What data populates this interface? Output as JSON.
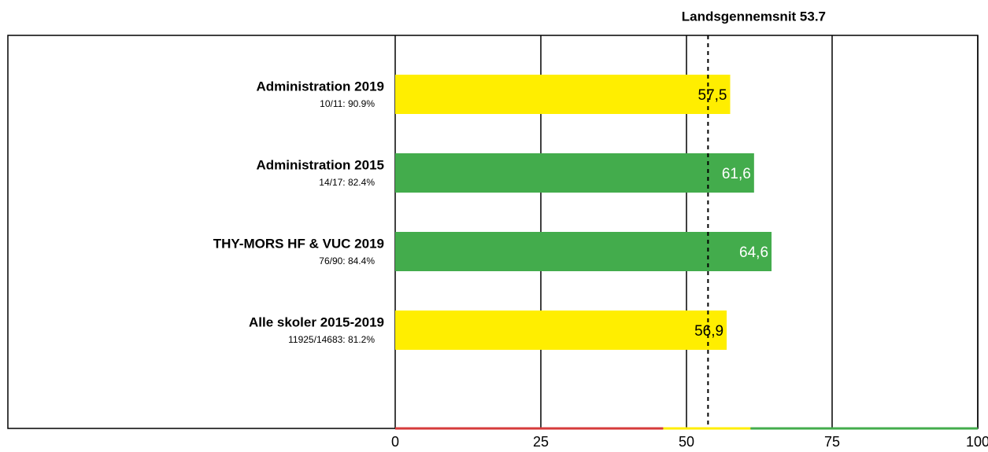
{
  "chart_data": {
    "type": "hbar",
    "categories": [
      "Administration 2019",
      "Administration 2015",
      "THY-MORS HF & VUC 2019",
      "Alle skoler 2015-2019"
    ],
    "sublabels": [
      "10/11: 90.9%",
      "14/17: 82.4%",
      "76/90: 84.4%",
      "11925/14683: 81.2%"
    ],
    "values": [
      57.5,
      61.6,
      64.6,
      56.9
    ],
    "value_labels": [
      "57,5",
      "61,6",
      "64,6",
      "56,9"
    ],
    "colors": [
      "#ffee00",
      "#43ac4c",
      "#43ac4c",
      "#ffee00"
    ],
    "value_label_colors": [
      "#000000",
      "#ffffff",
      "#ffffff",
      "#000000"
    ],
    "xlim": [
      0,
      100
    ],
    "xticks": [
      0,
      25,
      50,
      75,
      100
    ],
    "grid": true,
    "reference": {
      "value": 53.7,
      "label": "Landsgennemsnit 53.7"
    },
    "bands": [
      {
        "range": [
          0,
          46
        ],
        "color": "#d63a3a"
      },
      {
        "range": [
          46,
          61
        ],
        "color": "#ffee00"
      },
      {
        "range": [
          61,
          100
        ],
        "color": "#43ac4c"
      }
    ]
  }
}
